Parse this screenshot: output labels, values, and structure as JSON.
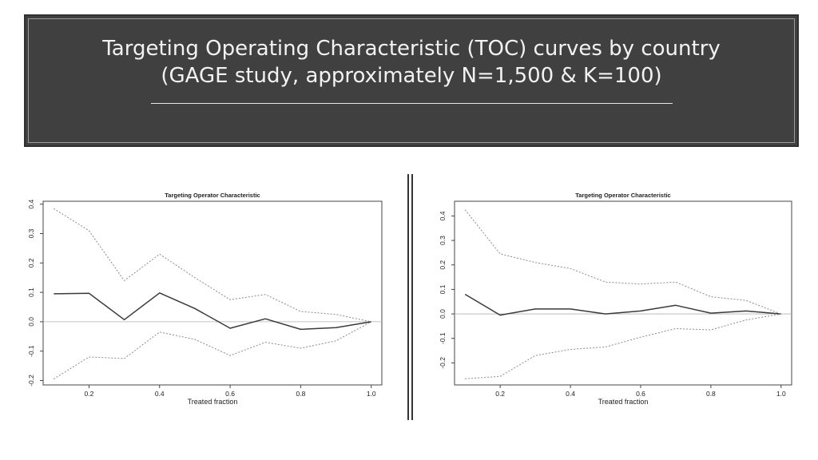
{
  "slide": {
    "title_line1": "Targeting Operating Characteristic (TOC) curves by country",
    "title_line2": "(GAGE study, approximately N=1,500 & K=100)"
  },
  "chart_data": [
    {
      "type": "line",
      "title": "Targeting Operator Characteristic",
      "xlabel": "Treated fraction",
      "ylabel": "",
      "xlim": [
        0.07,
        1.03
      ],
      "ylim": [
        -0.215,
        0.41
      ],
      "xticks": [
        0.2,
        0.4,
        0.6,
        0.8,
        1.0
      ],
      "xtick_labels": [
        "0.2",
        "0.4",
        "0.6",
        "0.8",
        "1.0"
      ],
      "yticks": [
        -0.2,
        -0.1,
        0.0,
        0.1,
        0.2,
        0.3,
        0.4
      ],
      "ytick_labels": [
        "-0.2",
        "-0.1",
        "0.0",
        "0.1",
        "0.2",
        "0.3",
        "0.4"
      ],
      "grid": false,
      "reference_line": 0,
      "x": [
        0.1,
        0.2,
        0.3,
        0.4,
        0.5,
        0.6,
        0.7,
        0.8,
        0.9,
        1.0
      ],
      "series": [
        {
          "role": "estimate",
          "values": [
            0.095,
            0.097,
            0.007,
            0.098,
            0.045,
            -0.022,
            0.01,
            -0.026,
            -0.02,
            0.0
          ]
        },
        {
          "role": "upper",
          "values": [
            0.385,
            0.31,
            0.14,
            0.23,
            0.15,
            0.075,
            0.093,
            0.035,
            0.025,
            0.0
          ]
        },
        {
          "role": "lower",
          "values": [
            -0.195,
            -0.12,
            -0.125,
            -0.035,
            -0.06,
            -0.115,
            -0.07,
            -0.09,
            -0.065,
            0.0
          ]
        }
      ]
    },
    {
      "type": "line",
      "title": "Targeting Operator Characteristic",
      "xlabel": "Treated fraction",
      "ylabel": "",
      "xlim": [
        0.07,
        1.03
      ],
      "ylim": [
        -0.29,
        0.46
      ],
      "xticks": [
        0.2,
        0.4,
        0.6,
        0.8,
        1.0
      ],
      "xtick_labels": [
        "0.2",
        "0.4",
        "0.6",
        "0.8",
        "1.0"
      ],
      "yticks": [
        -0.2,
        -0.1,
        0.0,
        0.1,
        0.2,
        0.3,
        0.4
      ],
      "ytick_labels": [
        "-0.2",
        "-0.1",
        "0.0",
        "0.1",
        "0.2",
        "0.3",
        "0.4"
      ],
      "grid": false,
      "reference_line": 0,
      "x": [
        0.1,
        0.2,
        0.3,
        0.4,
        0.5,
        0.6,
        0.7,
        0.8,
        0.9,
        1.0
      ],
      "series": [
        {
          "role": "estimate",
          "values": [
            0.08,
            -0.005,
            0.02,
            0.02,
            0.0,
            0.012,
            0.035,
            0.003,
            0.012,
            0.0
          ]
        },
        {
          "role": "upper",
          "values": [
            0.425,
            0.245,
            0.21,
            0.185,
            0.13,
            0.122,
            0.13,
            0.07,
            0.055,
            0.0
          ]
        },
        {
          "role": "lower",
          "values": [
            -0.265,
            -0.255,
            -0.17,
            -0.145,
            -0.135,
            -0.095,
            -0.06,
            -0.065,
            -0.025,
            0.0
          ]
        }
      ]
    }
  ]
}
